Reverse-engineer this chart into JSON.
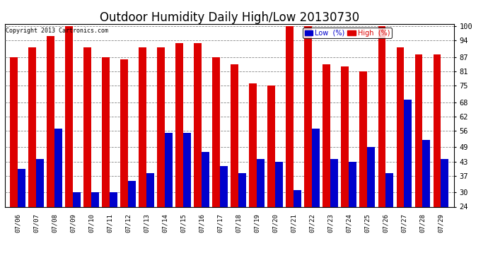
{
  "title": "Outdoor Humidity Daily High/Low 20130730",
  "copyright": "Copyright 2013 Cartronics.com",
  "dates": [
    "07/06",
    "07/07",
    "07/08",
    "07/09",
    "07/10",
    "07/11",
    "07/12",
    "07/13",
    "07/14",
    "07/15",
    "07/16",
    "07/17",
    "07/18",
    "07/19",
    "07/20",
    "07/21",
    "07/22",
    "07/23",
    "07/24",
    "07/25",
    "07/26",
    "07/27",
    "07/28",
    "07/29"
  ],
  "high": [
    87,
    91,
    96,
    100,
    91,
    87,
    86,
    91,
    91,
    93,
    93,
    87,
    84,
    76,
    75,
    100,
    100,
    84,
    83,
    81,
    100,
    91,
    88,
    88
  ],
  "low": [
    40,
    44,
    57,
    30,
    30,
    30,
    35,
    38,
    55,
    55,
    47,
    41,
    38,
    44,
    43,
    31,
    57,
    44,
    43,
    49,
    38,
    69,
    52,
    44
  ],
  "high_color": "#dd0000",
  "low_color": "#0000cc",
  "background_color": "#ffffff",
  "ymin": 24,
  "ymax": 101,
  "yticks": [
    24,
    30,
    37,
    43,
    49,
    56,
    62,
    68,
    75,
    81,
    87,
    94,
    100
  ],
  "bar_width": 0.42,
  "grid_color": "#888888",
  "title_fontsize": 12,
  "legend_low_label": "Low  (%)",
  "legend_high_label": "High  (%)"
}
